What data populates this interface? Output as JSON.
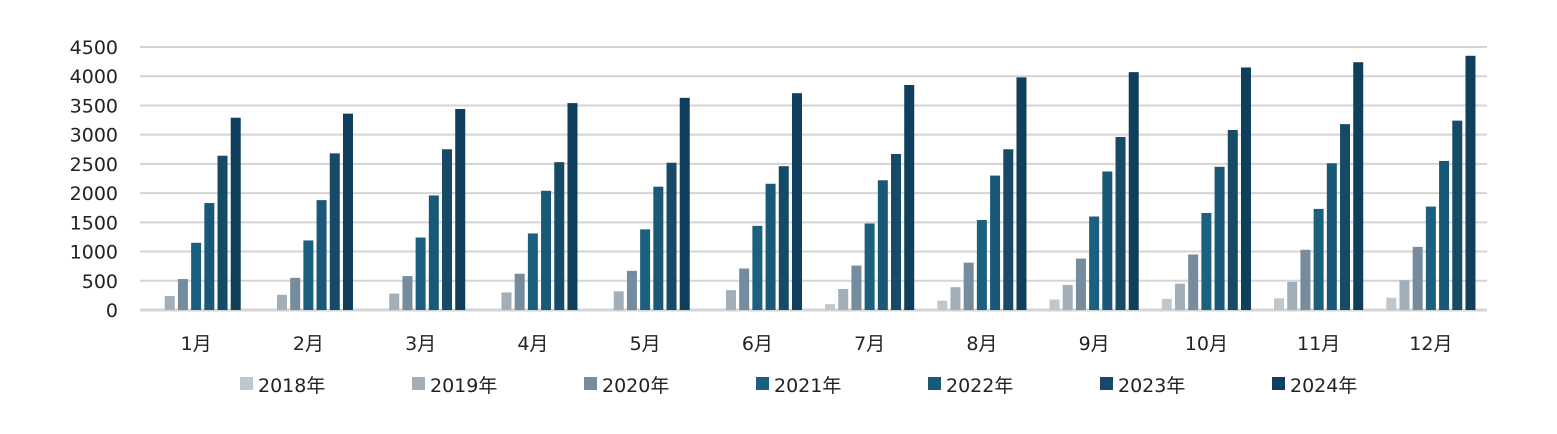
{
  "chart_data": {
    "type": "bar",
    "title": "",
    "xlabel": "",
    "ylabel": "",
    "ylim": [
      0,
      4500
    ],
    "yticks": [
      "0",
      "500",
      "1000",
      "1500",
      "2000",
      "2500",
      "3000",
      "3500",
      "4000",
      "4500"
    ],
    "grid": true,
    "legend_position": "bottom",
    "categories": [
      "1月",
      "2月",
      "3月",
      "4月",
      "5月",
      "6月",
      "7月",
      "8月",
      "9月",
      "10月",
      "11月",
      "12月"
    ],
    "series": [
      {
        "name": "2018年",
        "color": "#bfc7cd",
        "values": [
          0,
          0,
          0,
          0,
          0,
          0,
          100,
          160,
          180,
          190,
          200,
          210
        ]
      },
      {
        "name": "2019年",
        "color": "#a2aeb8",
        "values": [
          240,
          260,
          280,
          300,
          320,
          340,
          360,
          390,
          430,
          450,
          480,
          510
        ]
      },
      {
        "name": "2020年",
        "color": "#768b9c",
        "values": [
          530,
          550,
          580,
          620,
          670,
          710,
          760,
          810,
          880,
          950,
          1030,
          1080
        ]
      },
      {
        "name": "2021年",
        "color": "#1c607f",
        "values": [
          1150,
          1190,
          1240,
          1310,
          1380,
          1440,
          1480,
          1540,
          1600,
          1660,
          1730,
          1770
        ]
      },
      {
        "name": "2022年",
        "color": "#1a5878",
        "values": [
          1830,
          1880,
          1960,
          2040,
          2110,
          2160,
          2220,
          2300,
          2370,
          2450,
          2510,
          2550
        ]
      },
      {
        "name": "2023年",
        "color": "#164a66",
        "values": [
          2640,
          2680,
          2750,
          2530,
          2520,
          2460,
          2670,
          2750,
          2960,
          3080,
          3180,
          3240
        ]
      },
      {
        "name": "2024年",
        "color": "#0f3f5c",
        "values": [
          3290,
          3360,
          3440,
          3540,
          3630,
          3710,
          3850,
          3980,
          4070,
          4150,
          4240,
          4350
        ]
      }
    ]
  }
}
